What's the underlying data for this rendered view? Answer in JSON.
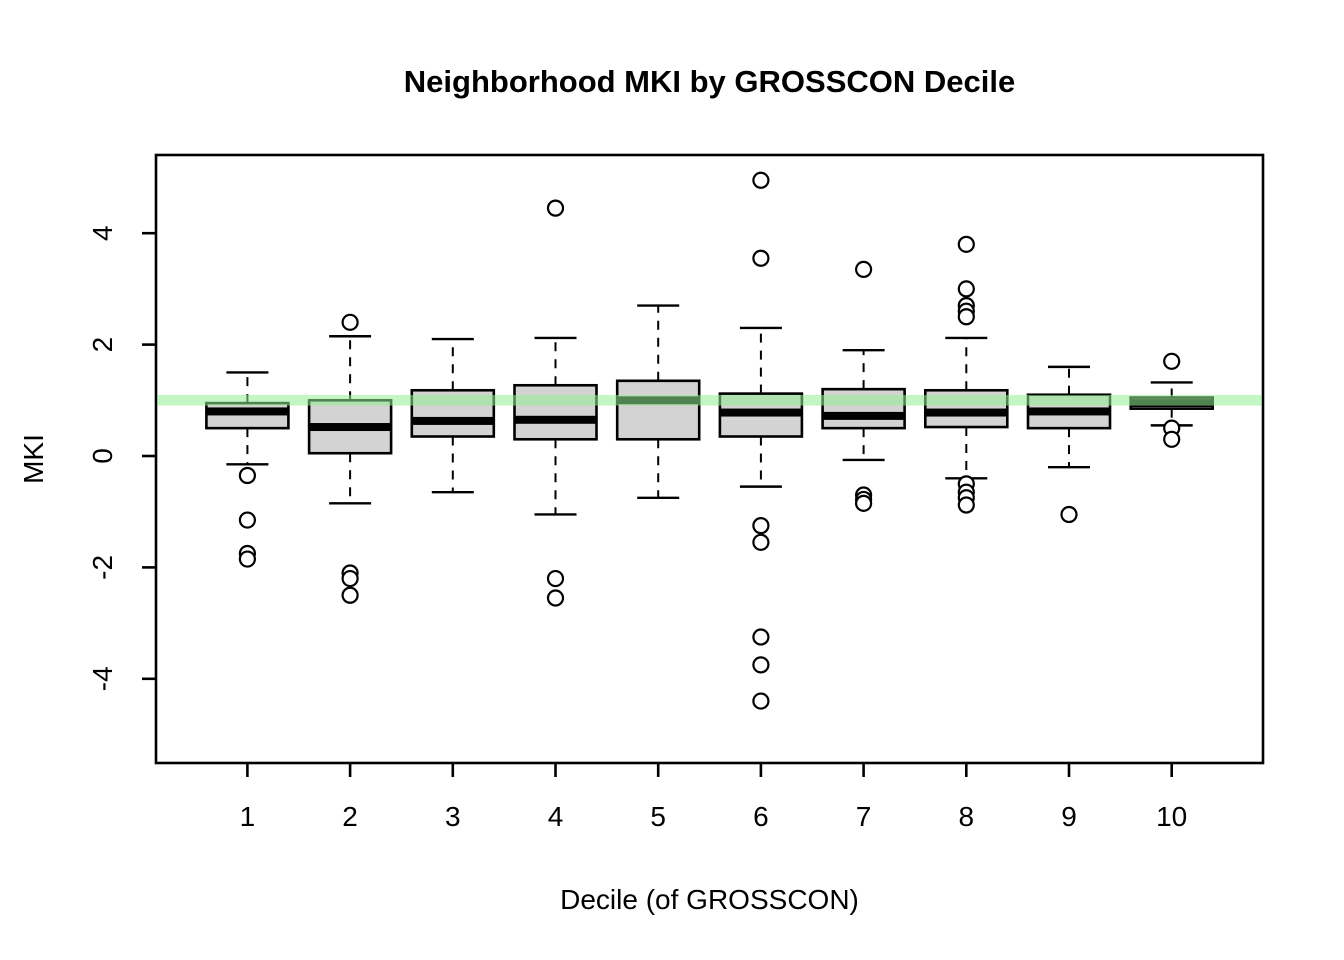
{
  "title": "Neighborhood MKI by GROSSCON Decile",
  "x_axis": {
    "label": "Decile (of GROSSCON)",
    "tick_labels": [
      "1",
      "2",
      "3",
      "4",
      "5",
      "6",
      "7",
      "8",
      "9",
      "10"
    ]
  },
  "y_axis": {
    "label": "MKI",
    "tick_labels": [
      "-4",
      "-2",
      "0",
      "2",
      "4"
    ],
    "tick_values": [
      -4,
      -2,
      0,
      2,
      4
    ]
  },
  "colors": {
    "box_fill": "#D3D3D3",
    "stroke": "#000000",
    "median": "#000000",
    "reference_band": "#90EE90",
    "reference_band_opacity": 0.55,
    "background": "#FFFFFF"
  },
  "chart_data": {
    "type": "boxplot",
    "title": "Neighborhood MKI by GROSSCON Decile",
    "xlabel": "Decile (of GROSSCON)",
    "ylabel": "MKI",
    "categories": [
      "1",
      "2",
      "3",
      "4",
      "5",
      "6",
      "7",
      "8",
      "9",
      "10"
    ],
    "ylim": [
      -4.8,
      5.3
    ],
    "yticks": [
      -4,
      -2,
      0,
      2,
      4
    ],
    "grid": false,
    "legend": "none",
    "reference_line": {
      "y": 1.0,
      "color": "#90EE90",
      "opacity": 0.55,
      "thickness_units": 0.19,
      "note": "translucent green horizontal band at MKI = 1 spanning full plot width, drawn over boxes"
    },
    "series": [
      {
        "decile": "1",
        "whisker_low": -0.15,
        "q1": 0.5,
        "median": 0.8,
        "q3": 0.95,
        "whisker_high": 1.5,
        "outliers": [
          -0.35,
          -1.15,
          -1.75,
          -1.85
        ]
      },
      {
        "decile": "2",
        "whisker_low": -0.85,
        "q1": 0.05,
        "median": 0.52,
        "q3": 1.0,
        "whisker_high": 2.15,
        "outliers": [
          2.4,
          -2.1,
          -2.2,
          -2.5
        ]
      },
      {
        "decile": "3",
        "whisker_low": -0.65,
        "q1": 0.35,
        "median": 0.63,
        "q3": 1.18,
        "whisker_high": 2.1,
        "outliers": []
      },
      {
        "decile": "4",
        "whisker_low": -1.05,
        "q1": 0.3,
        "median": 0.65,
        "q3": 1.27,
        "whisker_high": 2.12,
        "outliers": [
          4.45,
          -2.2,
          -2.55
        ]
      },
      {
        "decile": "5",
        "whisker_low": -0.75,
        "q1": 0.3,
        "median": 1.0,
        "q3": 1.35,
        "whisker_high": 2.7,
        "outliers": []
      },
      {
        "decile": "6",
        "whisker_low": -0.55,
        "q1": 0.35,
        "median": 0.78,
        "q3": 1.12,
        "whisker_high": 2.3,
        "outliers": [
          4.95,
          3.55,
          -1.25,
          -1.55,
          -3.25,
          -3.75,
          -4.4
        ]
      },
      {
        "decile": "7",
        "whisker_low": -0.07,
        "q1": 0.5,
        "median": 0.72,
        "q3": 1.2,
        "whisker_high": 1.9,
        "outliers": [
          3.35,
          -0.7,
          -0.78,
          -0.85
        ]
      },
      {
        "decile": "8",
        "whisker_low": -0.4,
        "q1": 0.52,
        "median": 0.78,
        "q3": 1.18,
        "whisker_high": 2.12,
        "outliers": [
          3.8,
          3.0,
          2.7,
          2.6,
          2.5,
          -0.5,
          -0.65,
          -0.75,
          -0.88
        ]
      },
      {
        "decile": "9",
        "whisker_low": -0.2,
        "q1": 0.5,
        "median": 0.8,
        "q3": 1.1,
        "whisker_high": 1.6,
        "outliers": [
          -1.05
        ]
      },
      {
        "decile": "10",
        "whisker_low": 0.55,
        "q1": 0.85,
        "median": 0.95,
        "q3": 1.05,
        "whisker_high": 1.32,
        "outliers": [
          1.7,
          0.5,
          0.3
        ]
      }
    ]
  }
}
